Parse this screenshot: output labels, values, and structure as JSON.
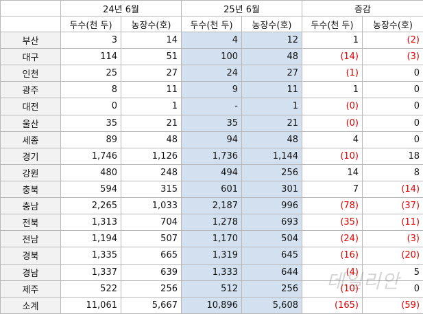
{
  "table": {
    "period_headers": [
      "24년 6월",
      "25년 6월",
      "증감"
    ],
    "sub_headers": [
      "두수(천 두)",
      "농장수(호)",
      "두수(천 두)",
      "농장수(호)",
      "두수(천 두)",
      "농장수(호)"
    ],
    "rows": [
      {
        "region": "부산",
        "h24": "3",
        "f24": "14",
        "h25": "4",
        "f25": "12",
        "dh": "1",
        "df": "(2)"
      },
      {
        "region": "대구",
        "h24": "114",
        "f24": "51",
        "h25": "100",
        "f25": "48",
        "dh": "(14)",
        "df": "(3)"
      },
      {
        "region": "인천",
        "h24": "25",
        "f24": "27",
        "h25": "24",
        "f25": "27",
        "dh": "(1)",
        "df": "0"
      },
      {
        "region": "광주",
        "h24": "8",
        "f24": "11",
        "h25": "9",
        "f25": "11",
        "dh": "1",
        "df": "0"
      },
      {
        "region": "대전",
        "h24": "0",
        "f24": "1",
        "h25": "-",
        "f25": "1",
        "dh": "(0)",
        "df": "0"
      },
      {
        "region": "울산",
        "h24": "35",
        "f24": "21",
        "h25": "35",
        "f25": "21",
        "dh": "(0)",
        "df": "0"
      },
      {
        "region": "세종",
        "h24": "89",
        "f24": "48",
        "h25": "94",
        "f25": "48",
        "dh": "4",
        "df": "0"
      },
      {
        "region": "경기",
        "h24": "1,746",
        "f24": "1,126",
        "h25": "1,736",
        "f25": "1,144",
        "dh": "(10)",
        "df": "18"
      },
      {
        "region": "강원",
        "h24": "480",
        "f24": "248",
        "h25": "494",
        "f25": "256",
        "dh": "14",
        "df": "8"
      },
      {
        "region": "충북",
        "h24": "594",
        "f24": "315",
        "h25": "601",
        "f25": "301",
        "dh": "7",
        "df": "(14)"
      },
      {
        "region": "충남",
        "h24": "2,265",
        "f24": "1,033",
        "h25": "2,187",
        "f25": "996",
        "dh": "(78)",
        "df": "(37)"
      },
      {
        "region": "전북",
        "h24": "1,313",
        "f24": "704",
        "h25": "1,278",
        "f25": "693",
        "dh": "(35)",
        "df": "(11)"
      },
      {
        "region": "전남",
        "h24": "1,194",
        "f24": "507",
        "h25": "1,170",
        "f25": "504",
        "dh": "(24)",
        "df": "(3)"
      },
      {
        "region": "경북",
        "h24": "1,335",
        "f24": "665",
        "h25": "1,319",
        "f25": "645",
        "dh": "(16)",
        "df": "(20)"
      },
      {
        "region": "경남",
        "h24": "1,337",
        "f24": "639",
        "h25": "1,333",
        "f25": "644",
        "dh": "(4)",
        "df": "5"
      },
      {
        "region": "제주",
        "h24": "522",
        "f24": "256",
        "h25": "512",
        "f25": "256",
        "dh": "(10)",
        "df": "0"
      },
      {
        "region": "소계",
        "h24": "11,061",
        "f24": "5,667",
        "h25": "10,896",
        "f25": "5,608",
        "dh": "(165)",
        "df": "(59)"
      }
    ]
  },
  "watermark": "데일리안",
  "colors": {
    "highlight_column": "#d2e0ef",
    "negative": "#e00000",
    "region_column": "#f2f2f2",
    "grid": "#b7b7b7"
  }
}
